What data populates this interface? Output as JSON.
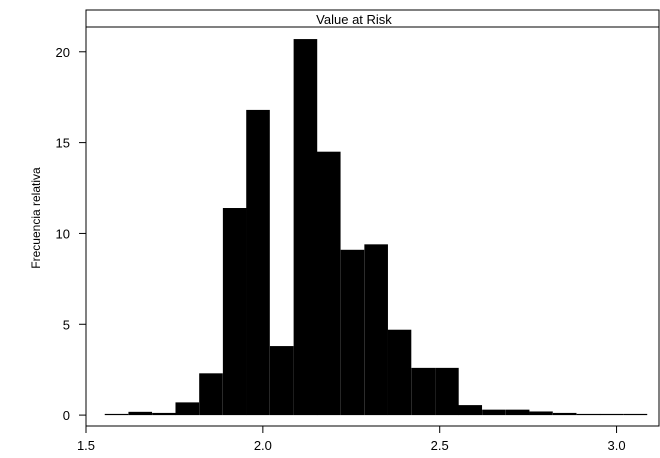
{
  "chart_data": {
    "type": "bar",
    "title": "Value at Risk",
    "xlabel": "",
    "ylabel": "Frecuencia relativa",
    "xlim": [
      1.5,
      3.12
    ],
    "ylim": [
      -0.6,
      22.3
    ],
    "x_ticks": [
      1.5,
      2.0,
      2.5,
      3.0
    ],
    "x_tick_labels": [
      "1.5",
      "2.0",
      "2.5",
      "3.0"
    ],
    "y_ticks": [
      0,
      5,
      10,
      15,
      20
    ],
    "y_tick_labels": [
      "0",
      "5",
      "10",
      "15",
      "20"
    ],
    "bin_width": 0.0667,
    "bin_starts": [
      1.553,
      1.62,
      1.687,
      1.753,
      1.82,
      1.887,
      1.953,
      2.02,
      2.087,
      2.153,
      2.22,
      2.287,
      2.353,
      2.42,
      2.487,
      2.553,
      2.62,
      2.687,
      2.753,
      2.82,
      2.887,
      2.953,
      3.02
    ],
    "values": [
      0.05,
      0.18,
      0.12,
      0.7,
      2.3,
      11.4,
      16.8,
      3.8,
      20.7,
      14.5,
      9.1,
      9.4,
      4.7,
      2.6,
      2.6,
      0.55,
      0.3,
      0.3,
      0.2,
      0.12,
      0.05,
      0.05,
      0.05
    ],
    "grid": false,
    "legend": "none",
    "colors": {
      "bar": "#000000",
      "background": "#ffffff",
      "axis": "#000000"
    }
  }
}
